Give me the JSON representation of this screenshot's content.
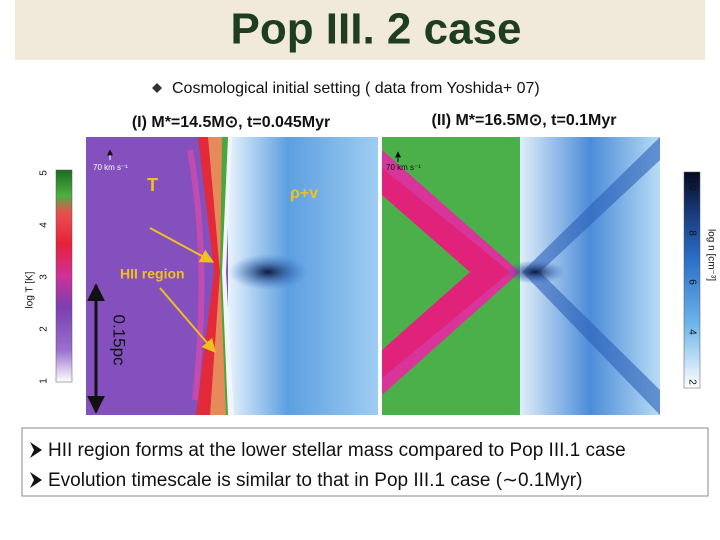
{
  "header": {
    "title": "Pop III. 2 case"
  },
  "subtitle": "Cosmological initial setting ( data from Yoshida+ 07)",
  "panels": [
    {
      "title": "(I) M*=14.5M⊙, t=0.045Myr",
      "velocity_label": "70 km s⁻¹",
      "left_label": "T",
      "right_label": "ρ+v",
      "annotation": "HII region",
      "scale": "0.15pc"
    },
    {
      "title": "(II) M*=16.5M⊙, t=0.1Myr",
      "velocity_label": "70 km s⁻¹"
    }
  ],
  "colorbars": [
    {
      "label": "log T  [K]",
      "ticks": [
        "5",
        "4",
        "3",
        "2",
        "1"
      ]
    },
    {
      "label": "log n  [cm⁻³]",
      "ticks": [
        "10",
        "8",
        "6",
        "4",
        "2"
      ]
    }
  ],
  "bullets": [
    "HII region forms at the lower stellar mass compared to Pop III.1 case",
    "Evolution timescale is similar to that in Pop III.1 case (∼0.1Myr)"
  ]
}
